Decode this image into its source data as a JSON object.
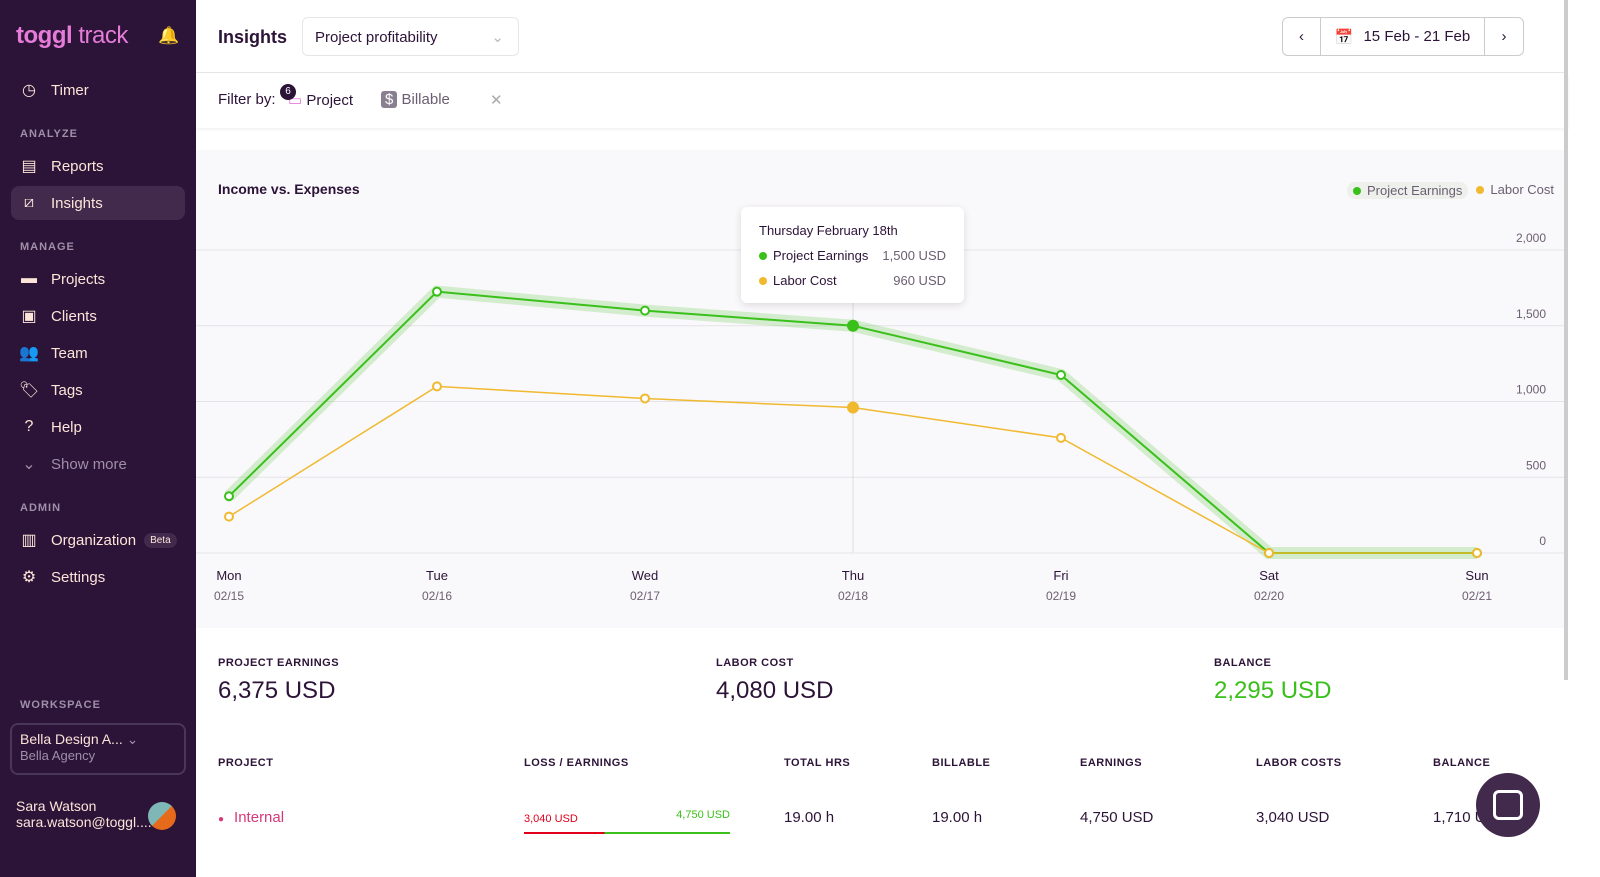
{
  "sidebar": {
    "logo": "toggl track",
    "nav": {
      "timer": "Timer",
      "analyze": "ANALYZE",
      "reports": "Reports",
      "insights": "Insights",
      "manage": "MANAGE",
      "projects": "Projects",
      "clients": "Clients",
      "team": "Team",
      "tags": "Tags",
      "help": "Help",
      "show_more": "Show more",
      "admin": "ADMIN",
      "organization": "Organization",
      "beta": "Beta",
      "settings": "Settings"
    },
    "workspace": {
      "label": "WORKSPACE",
      "name": "Bella Design A...",
      "sub": "Bella Agency"
    },
    "user": {
      "name": "Sara Watson",
      "email": "sara.watson@toggl...."
    }
  },
  "header": {
    "title": "Insights",
    "report_select": "Project profitability",
    "date_range": "15 Feb - 21 Feb"
  },
  "filter": {
    "label": "Filter by:",
    "project": "Project",
    "project_count": "6",
    "billable": "Billable"
  },
  "chart": {
    "title": "Income vs. Expenses",
    "tooltip": {
      "date": "Thursday February 18th",
      "earnings_label": "Project Earnings",
      "earnings": "1,500 USD",
      "labor_label": "Labor Cost",
      "labor": "960 USD"
    }
  },
  "chart_data": {
    "type": "line",
    "title": "Income vs. Expenses",
    "categories": [
      "Mon",
      "Tue",
      "Wed",
      "Thu",
      "Fri",
      "Sat",
      "Sun"
    ],
    "dates": [
      "02/15",
      "02/16",
      "02/17",
      "02/18",
      "02/19",
      "02/20",
      "02/21"
    ],
    "series": [
      {
        "name": "Project Earnings",
        "color": "#3ac01a",
        "values": [
          375,
          1725,
          1600,
          1500,
          1175,
          0,
          0
        ]
      },
      {
        "name": "Labor Cost",
        "color": "#f0b92f",
        "values": [
          240,
          1100,
          1020,
          960,
          760,
          0,
          0
        ]
      }
    ],
    "ylim": [
      0,
      2000
    ],
    "yticks": [
      "0",
      "500",
      "1,000",
      "1,500",
      "2,000"
    ],
    "legend": "top-right",
    "grid": true,
    "highlighted": "Thu"
  },
  "stats": {
    "earnings_label": "PROJECT EARNINGS",
    "earnings": "6,375 USD",
    "labor_label": "LABOR COST",
    "labor": "4,080 USD",
    "balance_label": "BALANCE",
    "balance": "2,295 USD"
  },
  "table": {
    "headers": [
      "PROJECT",
      "LOSS / EARNINGS",
      "TOTAL HRS",
      "BILLABLE",
      "EARNINGS",
      "LABOR COSTS",
      "BALANCE"
    ],
    "rows": [
      {
        "project": "Internal",
        "loss": "3,040 USD",
        "earn": "4,750 USD",
        "total": "19.00 h",
        "billable": "19.00 h",
        "earnings": "4,750 USD",
        "labor": "3,040 USD",
        "balance": "1,710 USD"
      }
    ]
  }
}
